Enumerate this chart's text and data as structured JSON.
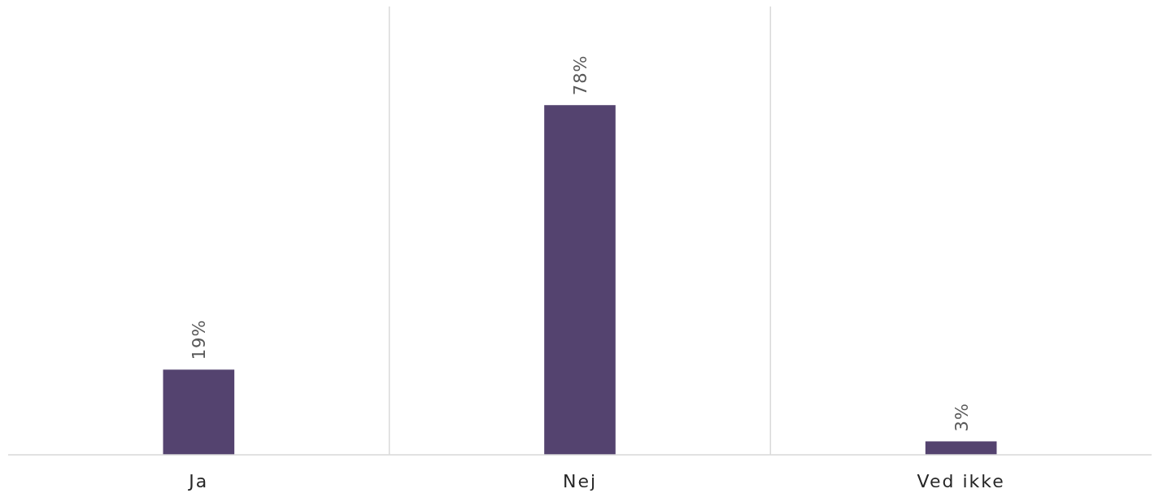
{
  "chart_data": {
    "type": "bar",
    "categories": [
      "Ja",
      "Nej",
      "Ved ikke"
    ],
    "series": [
      {
        "color": "#54436f",
        "values": [
          19,
          78,
          3
        ],
        "value_labels": [
          "19%",
          "78%",
          "3%"
        ]
      }
    ],
    "ylim": [
      0,
      100
    ],
    "tick_labels": "x",
    "grid": "x"
  }
}
